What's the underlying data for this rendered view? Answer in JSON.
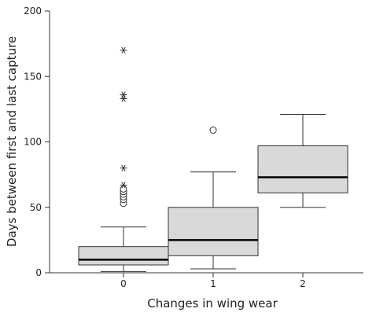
{
  "chart_data": {
    "type": "box",
    "title": "",
    "xlabel": "Changes in wing wear",
    "ylabel": "Days between first and last capture",
    "categories": [
      "0",
      "1",
      "2"
    ],
    "ylim": [
      0,
      200
    ],
    "yticks": [
      0,
      50,
      100,
      150,
      200
    ],
    "grid": false,
    "legend": "none",
    "colors": {
      "box_fill": "#d9d9d9",
      "stroke": "#333333",
      "median": "#000000"
    },
    "boxes": [
      {
        "category": "0",
        "whisker_low": 1,
        "q1": 6,
        "median": 10,
        "q3": 20,
        "whisker_high": 35,
        "circle_outliers": [
          53,
          56,
          58,
          60,
          62,
          64
        ],
        "star_outliers": [
          67,
          80,
          133,
          136,
          170
        ]
      },
      {
        "category": "1",
        "whisker_low": 3,
        "q1": 13,
        "median": 25,
        "q3": 50,
        "whisker_high": 77,
        "circle_outliers": [
          109
        ],
        "star_outliers": []
      },
      {
        "category": "2",
        "whisker_low": 50,
        "q1": 61,
        "median": 73,
        "q3": 97,
        "whisker_high": 121,
        "circle_outliers": [],
        "star_outliers": []
      }
    ]
  }
}
